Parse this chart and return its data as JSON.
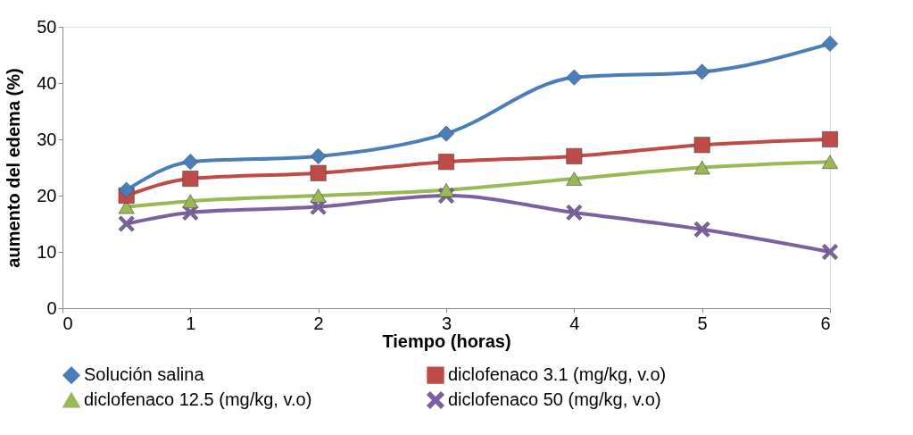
{
  "chart_data": {
    "type": "line",
    "xlabel": "Tiempo (horas)",
    "ylabel": "aumento del edema (%)",
    "x": [
      0.5,
      1,
      2,
      3,
      4,
      5,
      6
    ],
    "series": [
      {
        "name": "Solución salina",
        "color": "#4a7ebb",
        "marker": "diamond",
        "values": [
          21,
          26,
          27,
          31,
          41,
          42,
          47
        ]
      },
      {
        "name": "diclofenaco 3.1 (mg/kg, v.o)",
        "color": "#be4b48",
        "marker": "square",
        "values": [
          20,
          23,
          24,
          26,
          27,
          29,
          30
        ]
      },
      {
        "name": "diclofenaco 12.5  (mg/kg, v.o)",
        "color": "#98b954",
        "marker": "triangle",
        "values": [
          18,
          19,
          20,
          21,
          23,
          25,
          26
        ]
      },
      {
        "name": "diclofenaco 50 (mg/kg, v.o)",
        "color": "#7d60a0",
        "marker": "cross",
        "values": [
          15,
          17,
          18,
          20,
          17,
          14,
          10
        ]
      }
    ],
    "xlim": [
      0,
      6
    ],
    "xticks": [
      0,
      1,
      2,
      3,
      4,
      5,
      6
    ],
    "ylim": [
      0,
      50
    ],
    "yticks": [
      0,
      10,
      20,
      30,
      40,
      50
    ],
    "grid": false,
    "legend": "bottom",
    "line_style": "solid"
  }
}
